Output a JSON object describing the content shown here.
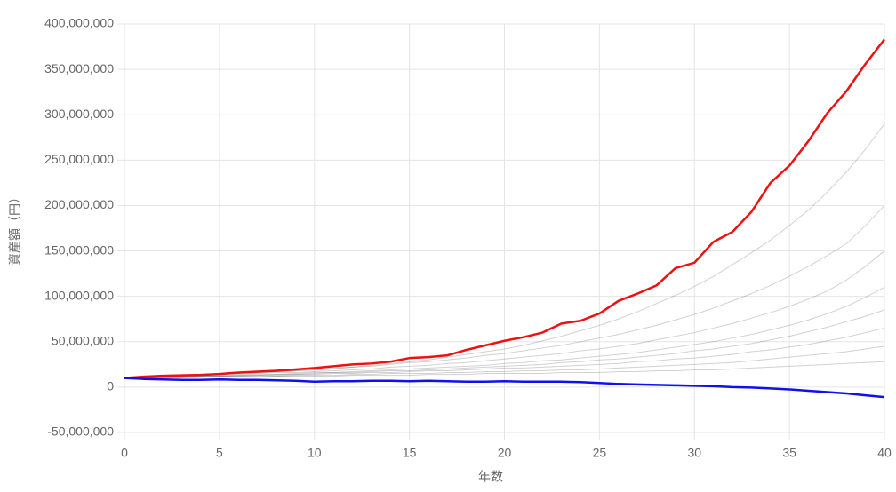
{
  "chart_data": {
    "type": "line",
    "xlabel": "年数",
    "ylabel": "資産額（円）",
    "x": [
      0,
      1,
      2,
      3,
      4,
      5,
      6,
      7,
      8,
      9,
      10,
      11,
      12,
      13,
      14,
      15,
      16,
      17,
      18,
      19,
      20,
      21,
      22,
      23,
      24,
      25,
      26,
      27,
      28,
      29,
      30,
      31,
      32,
      33,
      34,
      35,
      36,
      37,
      38,
      39,
      40
    ],
    "xlim": [
      0,
      40
    ],
    "xticks": [
      0,
      5,
      10,
      15,
      20,
      25,
      30,
      35,
      40
    ],
    "ylim": [
      -50000000.0,
      400000000.0
    ],
    "yticks": [
      {
        "value": -50000000.0,
        "label": "-50,000,000"
      },
      0,
      {
        "value": 50000000.0,
        "label": "50,000,000"
      },
      {
        "value": 100000000.0,
        "label": "100,000,000"
      },
      {
        "value": 150000000.0,
        "label": "150,000,000"
      },
      {
        "value": 200000000.0,
        "label": "200,000,000"
      },
      {
        "value": 250000000.0,
        "label": "250,000,000"
      },
      {
        "value": 300000000.0,
        "label": "300,000,000"
      },
      {
        "value": 350000000.0,
        "label": "350,000,000"
      },
      {
        "value": 400000000.0,
        "label": "400,000,000"
      }
    ],
    "grid": true,
    "series": [
      {
        "color": "rgba(0,0,0,0.18)",
        "values": [
          10000000.0,
          11000000.0,
          12000000.0,
          12000000.0,
          13000000.0,
          14000000.0,
          15000000.0,
          16000000.0,
          17000000.0,
          18000000.0,
          19000000.0,
          21000000.0,
          22000000.0,
          24000000.0,
          26000000.0,
          28000000.0,
          30000000.0,
          33000000.0,
          36000000.0,
          39000000.0,
          42000000.0,
          46000000.0,
          51000000.0,
          56000000.0,
          62000000.0,
          68000000.0,
          75000000.0,
          83000000.0,
          92000000.0,
          101000000.0,
          111000000.0,
          122000000.0,
          135000000.0,
          148000000.0,
          162000000.0,
          178000000.0,
          195000000.0,
          215000000.0,
          237000000.0,
          262000000.0,
          290000000.0
        ]
      },
      {
        "color": "rgba(0,0,0,0.18)",
        "values": [
          10000000.0,
          11000000.0,
          11000000.0,
          12000000.0,
          13000000.0,
          14000000.0,
          15000000.0,
          16000000.0,
          17000000.0,
          18000000.0,
          19000000.0,
          20000000.0,
          22000000.0,
          23000000.0,
          25000000.0,
          27000000.0,
          28000000.0,
          30000000.0,
          32000000.0,
          35000000.0,
          37000000.0,
          40000000.0,
          43000000.0,
          46000000.0,
          50000000.0,
          54000000.0,
          58000000.0,
          63000000.0,
          68000000.0,
          74000000.0,
          80000000.0,
          87000000.0,
          95000000.0,
          103000000.0,
          112000000.0,
          122000000.0,
          133000000.0,
          145000000.0,
          158000000.0,
          178000000.0,
          200000000.0
        ]
      },
      {
        "color": "rgba(0,0,0,0.18)",
        "values": [
          10000000.0,
          11000000.0,
          11000000.0,
          12000000.0,
          12000000.0,
          13000000.0,
          14000000.0,
          15000000.0,
          16000000.0,
          16000000.0,
          17000000.0,
          18000000.0,
          19000000.0,
          20000000.0,
          22000000.0,
          23000000.0,
          24000000.0,
          26000000.0,
          27000000.0,
          29000000.0,
          31000000.0,
          33000000.0,
          35000000.0,
          37000000.0,
          40000000.0,
          42000000.0,
          45000000.0,
          48000000.0,
          52000000.0,
          56000000.0,
          60000000.0,
          65000000.0,
          70000000.0,
          76000000.0,
          82000000.0,
          89000000.0,
          97000000.0,
          106000000.0,
          118000000.0,
          133000000.0,
          150000000.0
        ]
      },
      {
        "color": "rgba(0,0,0,0.18)",
        "values": [
          10000000.0,
          10000000.0,
          11000000.0,
          11000000.0,
          12000000.0,
          12000000.0,
          13000000.0,
          14000000.0,
          14000000.0,
          15000000.0,
          16000000.0,
          16000000.0,
          17000000.0,
          18000000.0,
          19000000.0,
          20000000.0,
          21000000.0,
          22000000.0,
          23000000.0,
          24000000.0,
          26000000.0,
          27000000.0,
          29000000.0,
          30000000.0,
          32000000.0,
          34000000.0,
          36000000.0,
          38000000.0,
          41000000.0,
          44000000.0,
          47000000.0,
          50000000.0,
          54000000.0,
          58000000.0,
          63000000.0,
          68000000.0,
          74000000.0,
          81000000.0,
          89000000.0,
          99000000.0,
          110000000.0
        ]
      },
      {
        "color": "rgba(0,0,0,0.18)",
        "values": [
          10000000.0,
          10000000.0,
          11000000.0,
          11000000.0,
          12000000.0,
          12000000.0,
          13000000.0,
          13000000.0,
          14000000.0,
          14000000.0,
          15000000.0,
          16000000.0,
          16000000.0,
          17000000.0,
          18000000.0,
          18000000.0,
          19000000.0,
          20000000.0,
          21000000.0,
          22000000.0,
          23000000.0,
          24000000.0,
          25000000.0,
          27000000.0,
          28000000.0,
          30000000.0,
          31000000.0,
          33000000.0,
          35000000.0,
          37000000.0,
          40000000.0,
          42000000.0,
          45000000.0,
          48000000.0,
          52000000.0,
          56000000.0,
          61000000.0,
          66000000.0,
          72000000.0,
          78000000.0,
          85000000.0
        ]
      },
      {
        "color": "rgba(0,0,0,0.18)",
        "values": [
          10000000.0,
          10000000.0,
          11000000.0,
          11000000.0,
          11000000.0,
          12000000.0,
          12000000.0,
          13000000.0,
          13000000.0,
          14000000.0,
          14000000.0,
          15000000.0,
          15000000.0,
          16000000.0,
          16000000.0,
          17000000.0,
          18000000.0,
          18000000.0,
          19000000.0,
          20000000.0,
          21000000.0,
          21000000.0,
          22000000.0,
          23000000.0,
          24000000.0,
          25000000.0,
          26000000.0,
          28000000.0,
          29000000.0,
          31000000.0,
          32000000.0,
          34000000.0,
          36000000.0,
          39000000.0,
          41000000.0,
          44000000.0,
          47000000.0,
          51000000.0,
          55000000.0,
          60000000.0,
          65000000.0
        ]
      },
      {
        "color": "rgba(0,0,0,0.18)",
        "values": [
          10000000.0,
          10000000.0,
          10000000.0,
          11000000.0,
          11000000.0,
          11000000.0,
          12000000.0,
          12000000.0,
          12000000.0,
          13000000.0,
          13000000.0,
          13000000.0,
          14000000.0,
          14000000.0,
          15000000.0,
          15000000.0,
          15000000.0,
          16000000.0,
          16000000.0,
          17000000.0,
          17000000.0,
          18000000.0,
          18000000.0,
          19000000.0,
          19000000.0,
          20000000.0,
          21000000.0,
          22000000.0,
          23000000.0,
          24000000.0,
          25000000.0,
          26000000.0,
          27000000.0,
          29000000.0,
          31000000.0,
          33000000.0,
          35000000.0,
          37000000.0,
          39000000.0,
          42000000.0,
          45000000.0
        ]
      },
      {
        "color": "rgba(0,0,0,0.18)",
        "values": [
          10000000.0,
          10000000.0,
          10000000.0,
          10000000.0,
          11000000.0,
          11000000.0,
          11000000.0,
          11000000.0,
          12000000.0,
          12000000.0,
          12000000.0,
          12000000.0,
          13000000.0,
          13000000.0,
          13000000.0,
          13000000.0,
          14000000.0,
          14000000.0,
          14000000.0,
          15000000.0,
          15000000.0,
          15000000.0,
          15000000.0,
          16000000.0,
          16000000.0,
          16000000.0,
          17000000.0,
          17000000.0,
          18000000.0,
          18000000.0,
          19000000.0,
          19000000.0,
          20000000.0,
          21000000.0,
          22000000.0,
          23000000.0,
          24000000.0,
          25000000.0,
          26000000.0,
          27000000.0,
          28000000.0
        ]
      },
      {
        "color": "#ee1111",
        "width": 2.5,
        "values": [
          10000000.0,
          11500000.0,
          12500000.0,
          13000000.0,
          13500000.0,
          14500000.0,
          16000000.0,
          17000000.0,
          18000000.0,
          19500000.0,
          21000000.0,
          23000000.0,
          25000000.0,
          26000000.0,
          28000000.0,
          32000000.0,
          33000000.0,
          35000000.0,
          41000000.0,
          46000000.0,
          51000000.0,
          55000000.0,
          60000000.0,
          70000000.0,
          73000000.0,
          81000000.0,
          95000000.0,
          103000000.0,
          112000000.0,
          131000000.0,
          137000000.0,
          160000000.0,
          171000000.0,
          193000000.0,
          225000000.0,
          244000000.0,
          271000000.0,
          302000000.0,
          326000000.0,
          356000000.0,
          383000000.0
        ]
      },
      {
        "color": "#1010ee",
        "width": 2.5,
        "values": [
          10000000.0,
          9000000.0,
          8500000.0,
          8000000.0,
          8000000.0,
          8500000.0,
          8000000.0,
          8000000.0,
          7500000.0,
          7000000.0,
          6000000.0,
          6500000.0,
          6500000.0,
          7000000.0,
          7000000.0,
          6500000.0,
          7000000.0,
          6500000.0,
          6000000.0,
          6000000.0,
          6500000.0,
          6000000.0,
          6000000.0,
          6000000.0,
          5500000.0,
          4500000.0,
          3500000.0,
          3000000.0,
          2500000.0,
          2000000.0,
          1500000.0,
          1000000.0,
          0,
          -500000.0,
          -1500000.0,
          -2500000.0,
          -4000000.0,
          -5500000.0,
          -7000000.0,
          -9000000.0,
          -11000000.0
        ]
      }
    ]
  }
}
